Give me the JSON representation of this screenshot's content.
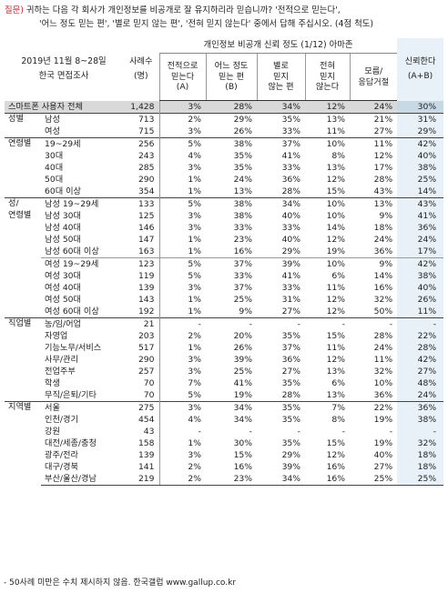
{
  "question": {
    "label": "질문)",
    "line1": "귀하는 다음 각 회사가 개인정보를 비공개로 잘 유지하리라 믿습니까? '전적으로 믿는다',",
    "line2": "'어느 정도 믿는 편', '별로 믿지 않는 편', '전혀 믿지 않는다' 중에서 답해 주십시오. (4점 척도)"
  },
  "header": {
    "survey_line1": "2019년 11월 8~28일",
    "survey_line2": "한국 면접조사",
    "sample_line1": "사례수",
    "sample_line2": "(명)",
    "group_title": "개인정보 비공개 신뢰 정도 (1/12) 아마존",
    "columns": [
      {
        "l1": "전적으로",
        "l2": "믿는다",
        "l3": "(A)",
        "l4": ""
      },
      {
        "l1": "어느 정도",
        "l2": "믿는 편",
        "l3": "(B)",
        "l4": ""
      },
      {
        "l1": "별로",
        "l2": "믿지",
        "l3": "않는 편",
        "l4": ""
      },
      {
        "l1": "전혀",
        "l2": "믿지",
        "l3": "않는다",
        "l4": ""
      },
      {
        "l1": "모름/",
        "l2": "응답거절",
        "l3": "",
        "l4": ""
      }
    ],
    "trust_line1": "신뢰한다",
    "trust_line2": "(A+B)"
  },
  "groups": [
    {
      "name": "",
      "rows": [
        {
          "label": "스마트폰 사용자 전체",
          "n": "1,428",
          "a": "3%",
          "b": "28%",
          "c": "34%",
          "d": "12%",
          "e": "24%",
          "t": "30%",
          "total": true
        }
      ]
    },
    {
      "name": "성별",
      "rows": [
        {
          "label": "남성",
          "n": "713",
          "a": "2%",
          "b": "29%",
          "c": "35%",
          "d": "13%",
          "e": "21%",
          "t": "31%"
        },
        {
          "label": "여성",
          "n": "715",
          "a": "3%",
          "b": "26%",
          "c": "33%",
          "d": "11%",
          "e": "27%",
          "t": "29%"
        }
      ]
    },
    {
      "name": "연령별",
      "rows": [
        {
          "label": "19~29세",
          "n": "256",
          "a": "5%",
          "b": "38%",
          "c": "37%",
          "d": "10%",
          "e": "11%",
          "t": "42%"
        },
        {
          "label": "30대",
          "n": "243",
          "a": "4%",
          "b": "35%",
          "c": "41%",
          "d": "8%",
          "e": "12%",
          "t": "40%"
        },
        {
          "label": "40대",
          "n": "285",
          "a": "3%",
          "b": "35%",
          "c": "33%",
          "d": "13%",
          "e": "17%",
          "t": "38%"
        },
        {
          "label": "50대",
          "n": "290",
          "a": "1%",
          "b": "24%",
          "c": "36%",
          "d": "12%",
          "e": "28%",
          "t": "25%"
        },
        {
          "label": "60대 이상",
          "n": "354",
          "a": "1%",
          "b": "13%",
          "c": "28%",
          "d": "15%",
          "e": "43%",
          "t": "14%"
        }
      ]
    },
    {
      "name": "성/\n연령별",
      "rows": [
        {
          "label": "남성 19~29세",
          "n": "133",
          "a": "5%",
          "b": "38%",
          "c": "34%",
          "d": "10%",
          "e": "13%",
          "t": "43%"
        },
        {
          "label": "남성 30대",
          "n": "125",
          "a": "3%",
          "b": "38%",
          "c": "40%",
          "d": "10%",
          "e": "9%",
          "t": "41%"
        },
        {
          "label": "남성 40대",
          "n": "146",
          "a": "3%",
          "b": "33%",
          "c": "33%",
          "d": "14%",
          "e": "18%",
          "t": "36%"
        },
        {
          "label": "남성 50대",
          "n": "147",
          "a": "1%",
          "b": "23%",
          "c": "40%",
          "d": "12%",
          "e": "24%",
          "t": "24%"
        },
        {
          "label": "남성 60대 이상",
          "n": "163",
          "a": "1%",
          "b": "16%",
          "c": "29%",
          "d": "19%",
          "e": "36%",
          "t": "17%"
        },
        {
          "label": "여성 19~29세",
          "n": "123",
          "a": "5%",
          "b": "37%",
          "c": "39%",
          "d": "10%",
          "e": "9%",
          "t": "42%",
          "substart": true
        },
        {
          "label": "여성 30대",
          "n": "119",
          "a": "5%",
          "b": "33%",
          "c": "41%",
          "d": "6%",
          "e": "14%",
          "t": "38%"
        },
        {
          "label": "여성 40대",
          "n": "139",
          "a": "3%",
          "b": "37%",
          "c": "33%",
          "d": "11%",
          "e": "16%",
          "t": "40%"
        },
        {
          "label": "여성 50대",
          "n": "143",
          "a": "1%",
          "b": "25%",
          "c": "31%",
          "d": "12%",
          "e": "32%",
          "t": "26%"
        },
        {
          "label": "여성 60대 이상",
          "n": "192",
          "a": "1%",
          "b": "9%",
          "c": "27%",
          "d": "12%",
          "e": "50%",
          "t": "11%"
        }
      ]
    },
    {
      "name": "직업별",
      "rows": [
        {
          "label": "농/임/어업",
          "n": "21",
          "a": "-",
          "b": "-",
          "c": "-",
          "d": "-",
          "e": "-",
          "t": "-"
        },
        {
          "label": "자영업",
          "n": "203",
          "a": "2%",
          "b": "20%",
          "c": "35%",
          "d": "15%",
          "e": "28%",
          "t": "22%"
        },
        {
          "label": "기능노무/서비스",
          "n": "517",
          "a": "1%",
          "b": "26%",
          "c": "37%",
          "d": "11%",
          "e": "24%",
          "t": "28%"
        },
        {
          "label": "사무/관리",
          "n": "290",
          "a": "3%",
          "b": "39%",
          "c": "36%",
          "d": "12%",
          "e": "11%",
          "t": "42%"
        },
        {
          "label": "전업주부",
          "n": "257",
          "a": "3%",
          "b": "25%",
          "c": "27%",
          "d": "13%",
          "e": "32%",
          "t": "27%"
        },
        {
          "label": "학생",
          "n": "70",
          "a": "7%",
          "b": "41%",
          "c": "35%",
          "d": "6%",
          "e": "10%",
          "t": "48%"
        },
        {
          "label": "무직/은퇴/기타",
          "n": "70",
          "a": "5%",
          "b": "19%",
          "c": "28%",
          "d": "13%",
          "e": "36%",
          "t": "24%"
        }
      ]
    },
    {
      "name": "지역별",
      "rows": [
        {
          "label": "서울",
          "n": "275",
          "a": "3%",
          "b": "34%",
          "c": "35%",
          "d": "7%",
          "e": "22%",
          "t": "36%"
        },
        {
          "label": "인천/경기",
          "n": "454",
          "a": "4%",
          "b": "34%",
          "c": "35%",
          "d": "8%",
          "e": "19%",
          "t": "38%"
        },
        {
          "label": "강원",
          "n": "43",
          "a": "-",
          "b": "-",
          "c": "-",
          "d": "-",
          "e": "-",
          "t": "-"
        },
        {
          "label": "대전/세종/충청",
          "n": "158",
          "a": "1%",
          "b": "30%",
          "c": "35%",
          "d": "15%",
          "e": "19%",
          "t": "32%"
        },
        {
          "label": "광주/전라",
          "n": "139",
          "a": "3%",
          "b": "15%",
          "c": "29%",
          "d": "12%",
          "e": "40%",
          "t": "18%"
        },
        {
          "label": "대구/경북",
          "n": "141",
          "a": "2%",
          "b": "16%",
          "c": "39%",
          "d": "16%",
          "e": "27%",
          "t": "18%"
        },
        {
          "label": "부산/울산/경남",
          "n": "219",
          "a": "2%",
          "b": "23%",
          "c": "34%",
          "d": "16%",
          "e": "25%",
          "t": "25%"
        }
      ]
    }
  ],
  "footer": "- 50사례 미만은 수치 제시하지 않음. 한국갤럽 www.gallup.co.kr"
}
